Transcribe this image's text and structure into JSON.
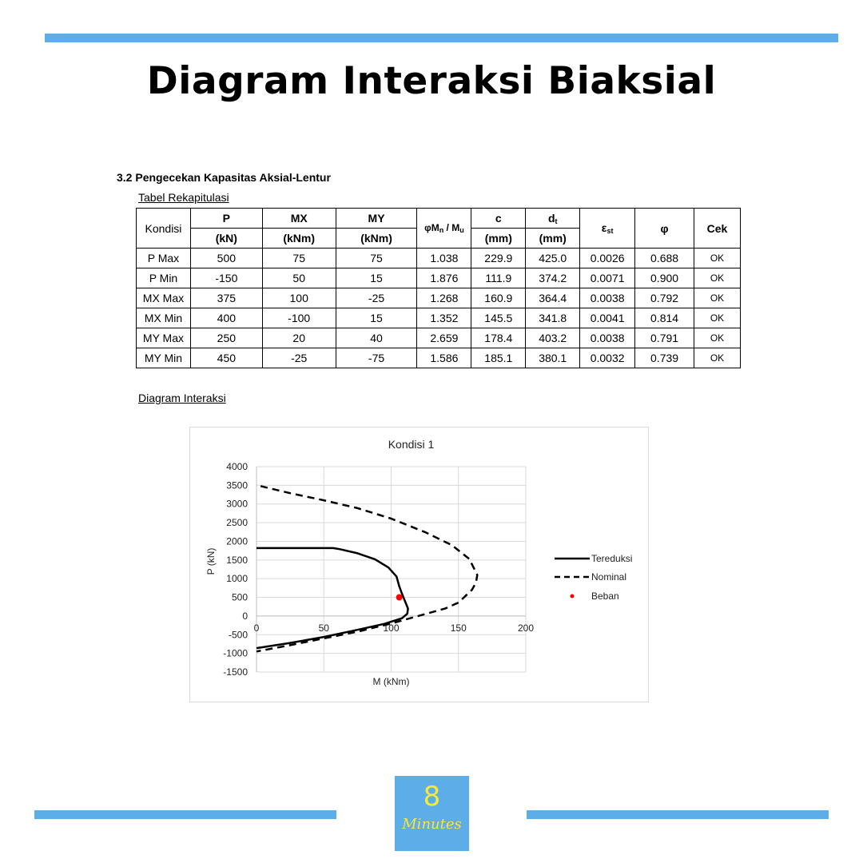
{
  "page": {
    "title": "Diagram Interaksi Biaksial"
  },
  "section": {
    "heading": "3.2  Pengecekan Kapasitas Aksial-Lentur",
    "table_caption": "Tabel Rekapitulasi",
    "diagram_caption": "Diagram Interaksi"
  },
  "table": {
    "col_kondisi": "Kondisi",
    "col_p": "P",
    "col_p_unit": "(kN)",
    "col_mx": "MX",
    "col_mx_unit": "(kNm)",
    "col_my": "MY",
    "col_my_unit": "(kNm)",
    "col_ratio_a": "φM",
    "col_ratio_a_sub": "n",
    "col_ratio_b": " / M",
    "col_ratio_b_sub": "u",
    "col_c": "c",
    "col_c_unit": "(mm)",
    "col_dt": "d",
    "col_dt_sub": "t",
    "col_dt_unit": "(mm)",
    "col_eps": "ε",
    "col_eps_sub": "st",
    "col_phi": "φ",
    "col_cek": "Cek",
    "rows": [
      [
        "P Max",
        "500",
        "75",
        "75",
        "1.038",
        "229.9",
        "425.0",
        "0.0026",
        "0.688",
        "OK"
      ],
      [
        "P Min",
        "-150",
        "50",
        "15",
        "1.876",
        "111.9",
        "374.2",
        "0.0071",
        "0.900",
        "OK"
      ],
      [
        "MX Max",
        "375",
        "100",
        "-25",
        "1.268",
        "160.9",
        "364.4",
        "0.0038",
        "0.792",
        "OK"
      ],
      [
        "MX Min",
        "400",
        "-100",
        "15",
        "1.352",
        "145.5",
        "341.8",
        "0.0041",
        "0.814",
        "OK"
      ],
      [
        "MY Max",
        "250",
        "20",
        "40",
        "2.659",
        "178.4",
        "403.2",
        "0.0038",
        "0.791",
        "OK"
      ],
      [
        "MY Min",
        "450",
        "-25",
        "-75",
        "1.586",
        "185.1",
        "380.1",
        "0.0032",
        "0.739",
        "OK"
      ]
    ]
  },
  "chart_data": {
    "type": "line",
    "title": "Kondisi 1",
    "xlabel": "M (kNm)",
    "ylabel": "P (kN)",
    "xlim": [
      0,
      200
    ],
    "ylim": [
      -1500,
      4000
    ],
    "xticks": [
      "0",
      "50",
      "100",
      "150",
      "200"
    ],
    "yticks": [
      "4000",
      "3500",
      "3000",
      "2500",
      "2000",
      "1500",
      "1000",
      "500",
      "0",
      "-500",
      "-1000",
      "-1500"
    ],
    "grid": true,
    "legend": "right",
    "series": [
      {
        "name": "Tereduksi",
        "style": "solid",
        "color": "#000000",
        "points": [
          [
            0,
            1820
          ],
          [
            57,
            1820
          ],
          [
            62,
            1790
          ],
          [
            75,
            1680
          ],
          [
            88,
            1520
          ],
          [
            98,
            1300
          ],
          [
            104,
            1060
          ],
          [
            106,
            800
          ],
          [
            108,
            600
          ],
          [
            110,
            420
          ],
          [
            112.5,
            200
          ],
          [
            112,
            60
          ],
          [
            108,
            -60
          ],
          [
            95,
            -210
          ],
          [
            75,
            -370
          ],
          [
            50,
            -560
          ],
          [
            25,
            -720
          ],
          [
            0,
            -860
          ]
        ]
      },
      {
        "name": "Nominal",
        "style": "dashed",
        "color": "#000000",
        "points": [
          [
            3,
            3480
          ],
          [
            25,
            3290
          ],
          [
            50,
            3100
          ],
          [
            75,
            2890
          ],
          [
            100,
            2610
          ],
          [
            125,
            2250
          ],
          [
            145,
            1900
          ],
          [
            158,
            1530
          ],
          [
            164,
            1100
          ],
          [
            163,
            900
          ],
          [
            160,
            700
          ],
          [
            150,
            360
          ],
          [
            140,
            200
          ],
          [
            120,
            0
          ],
          [
            100,
            -200
          ],
          [
            75,
            -420
          ],
          [
            50,
            -600
          ],
          [
            25,
            -780
          ],
          [
            0,
            -950
          ]
        ]
      },
      {
        "name": "Beban",
        "style": "marker",
        "color": "#ff0000",
        "points": [
          [
            106,
            500
          ]
        ]
      }
    ]
  },
  "logo": {
    "number": "8",
    "word": "Minutes"
  },
  "colors": {
    "accent": "#5dade8",
    "logo_text": "#f3ea3a",
    "load_point": "#ff0000"
  }
}
